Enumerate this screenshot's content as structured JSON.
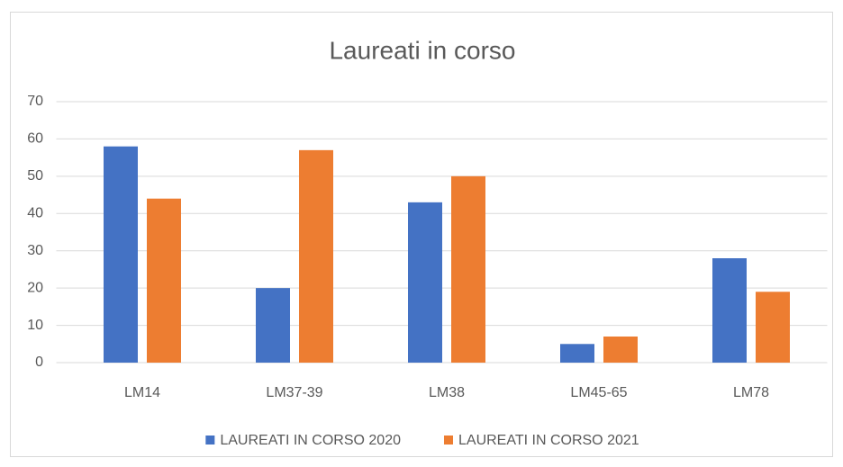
{
  "chart_data": {
    "type": "bar",
    "title": "Laureati in corso",
    "categories": [
      "LM14",
      "LM37-39",
      "LM38",
      "LM45-65",
      "LM78"
    ],
    "series": [
      {
        "name": "LAUREATI IN CORSO 2020",
        "color": "#4472c4",
        "values": [
          58,
          20,
          43,
          5,
          28
        ]
      },
      {
        "name": "LAUREATI IN CORSO 2021",
        "color": "#ed7d31",
        "values": [
          44,
          57,
          50,
          7,
          19
        ]
      }
    ],
    "ylim": [
      0,
      70
    ],
    "yticks": [
      0,
      10,
      20,
      30,
      40,
      50,
      60,
      70
    ],
    "grid": true,
    "legend": "bottom"
  }
}
